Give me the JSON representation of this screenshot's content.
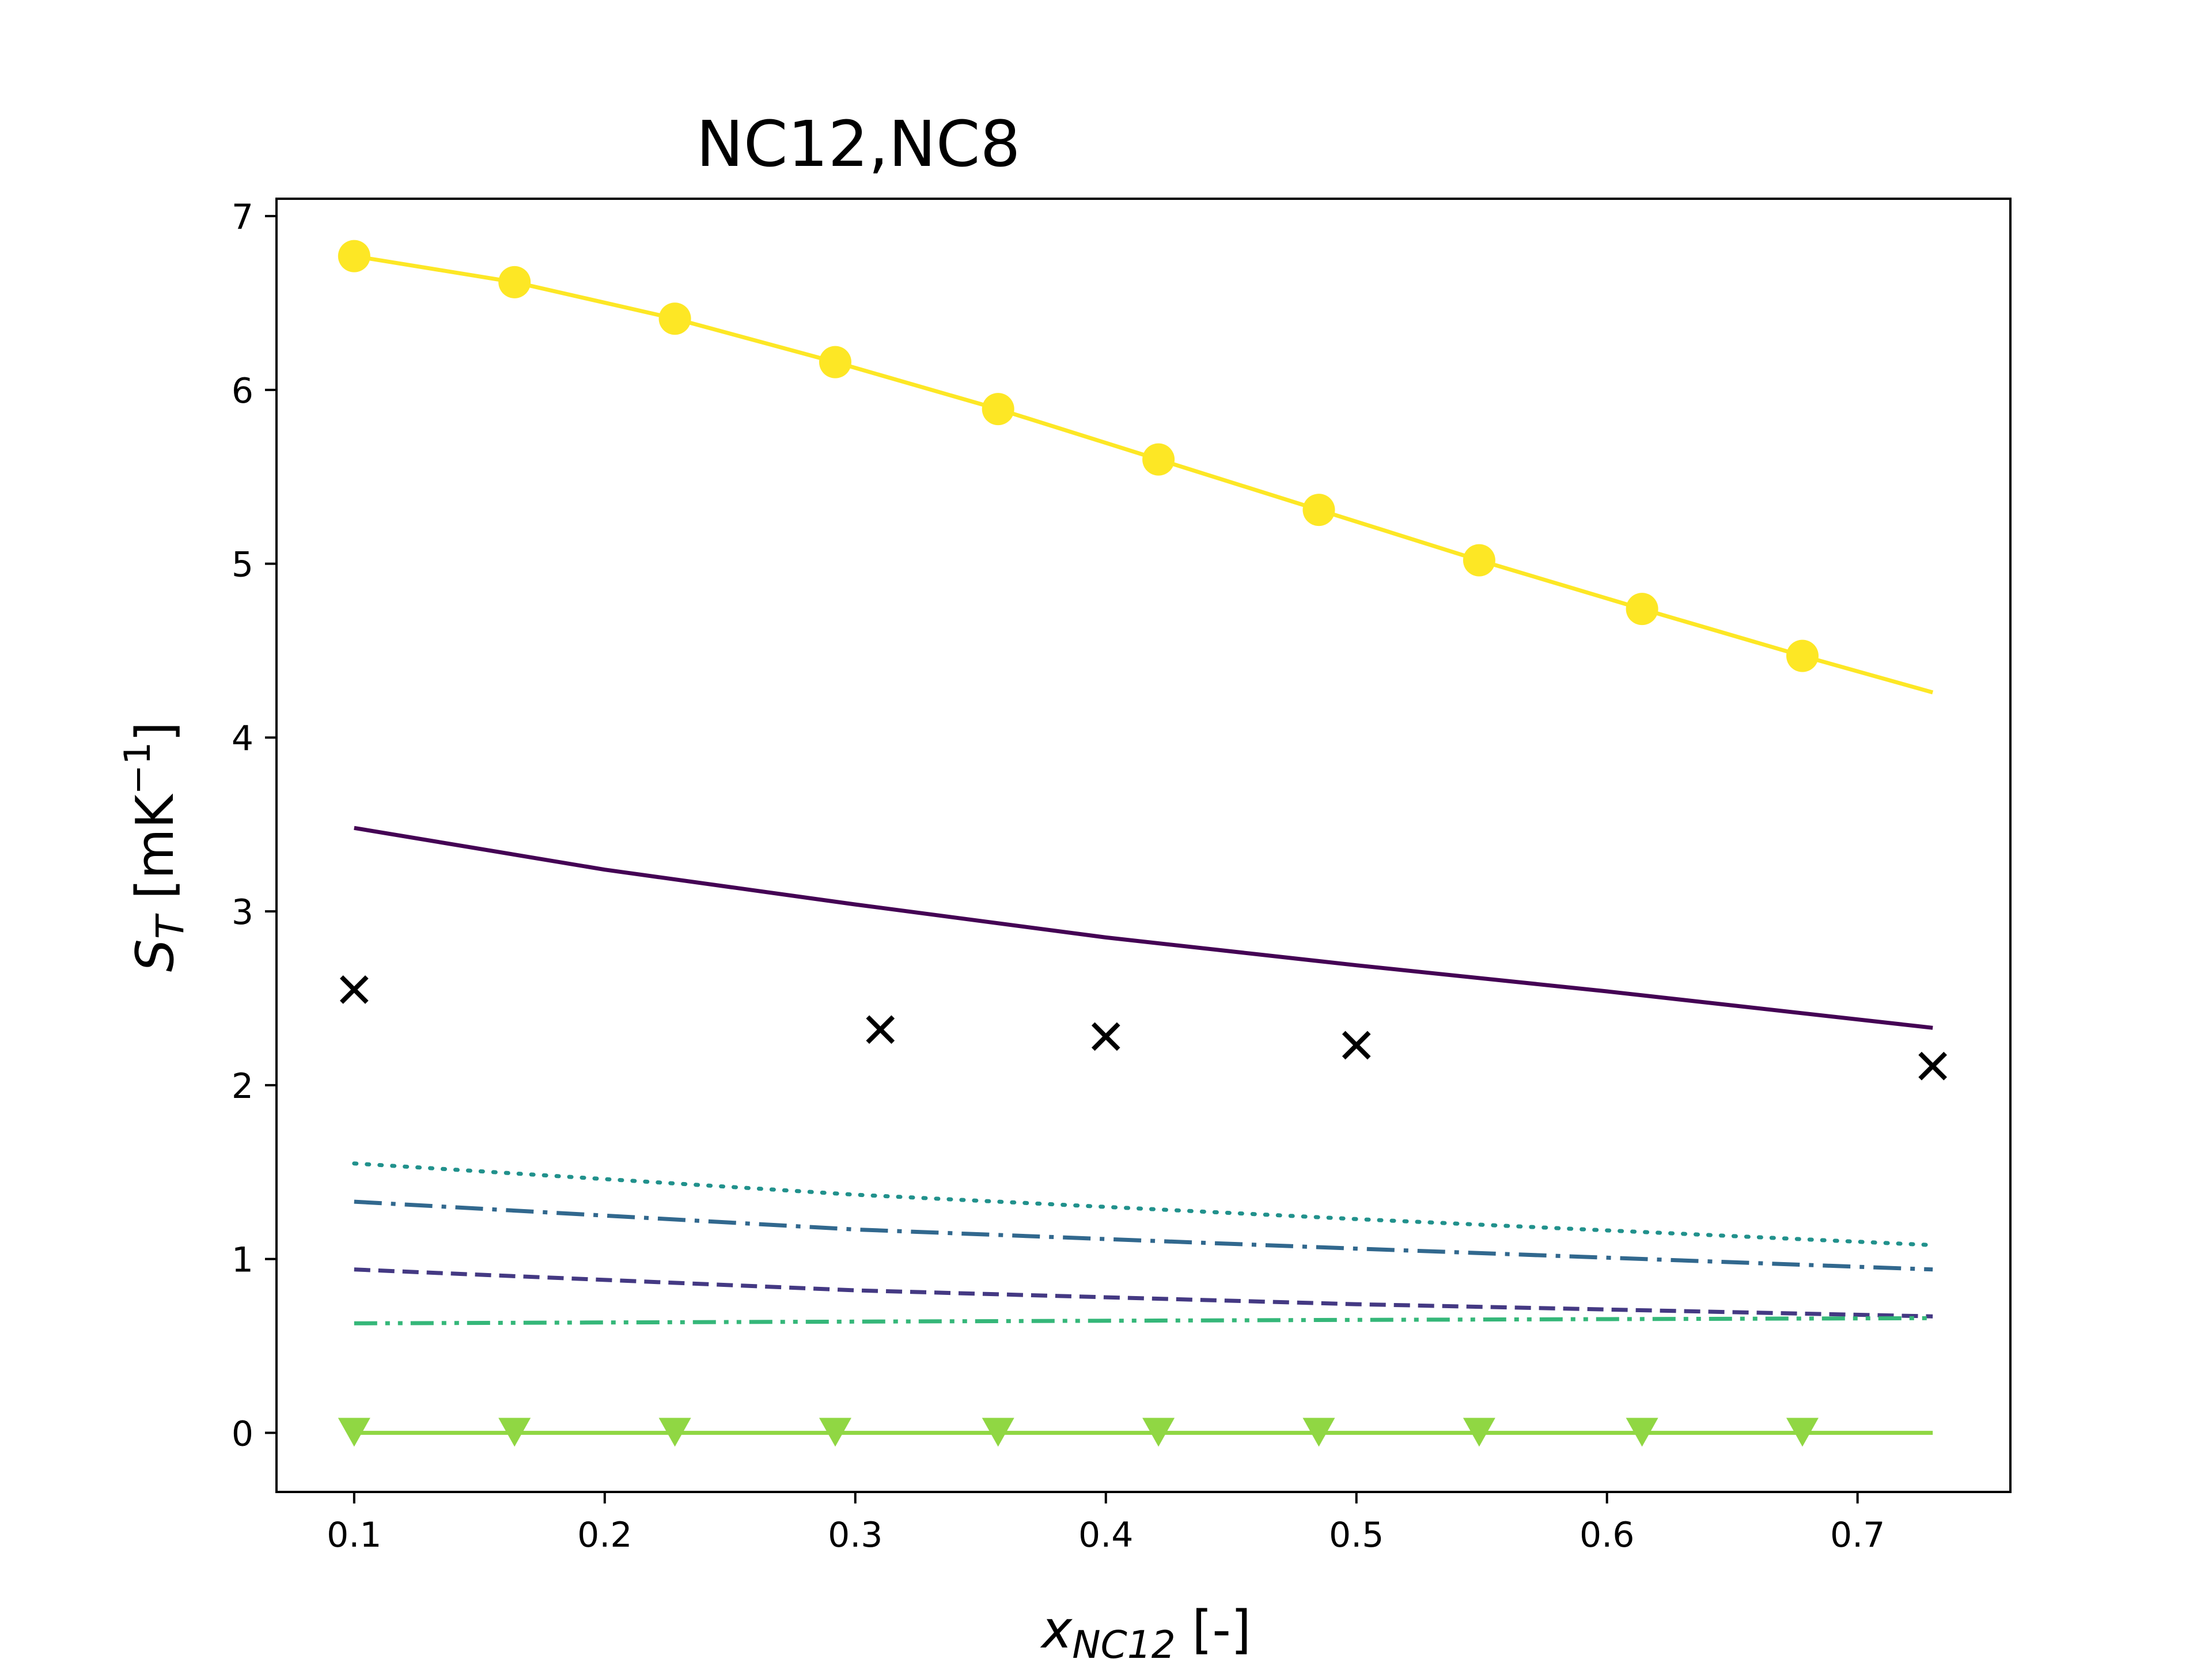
{
  "chart_data": {
    "type": "line",
    "title": "NC12,NC8",
    "xlabel": {
      "main": "x",
      "sub": "NC12",
      "suffix": " [-]"
    },
    "ylabel": {
      "main": "S",
      "sub": "T",
      "unit": " [mK",
      "exp": "−1",
      "close": "]"
    },
    "xlim": [
      0.069,
      0.761
    ],
    "ylim": [
      -0.34,
      7.1
    ],
    "xticks": [
      0.1,
      0.2,
      0.3,
      0.4,
      0.5,
      0.6,
      0.7
    ],
    "yticks": [
      0,
      1,
      2,
      3,
      4,
      5,
      6,
      7
    ],
    "grid": false,
    "legend": "none",
    "series": [
      {
        "style": "solid",
        "marker": "circle",
        "color": "#fde725",
        "x": [
          0.1,
          0.164,
          0.228,
          0.292,
          0.357,
          0.421,
          0.485,
          0.549,
          0.614,
          0.678
        ],
        "y": [
          6.77,
          6.62,
          6.41,
          6.16,
          5.89,
          5.6,
          5.31,
          5.02,
          4.74,
          4.47
        ],
        "line_x": [
          0.1,
          0.164,
          0.228,
          0.292,
          0.357,
          0.421,
          0.485,
          0.549,
          0.614,
          0.678,
          0.73
        ],
        "line_y": [
          6.77,
          6.62,
          6.41,
          6.16,
          5.89,
          5.6,
          5.31,
          5.02,
          4.74,
          4.47,
          4.26
        ]
      },
      {
        "style": "solid",
        "marker": "none",
        "color": "#440154",
        "x": [
          0.1,
          0.2,
          0.3,
          0.4,
          0.5,
          0.6,
          0.73
        ],
        "y": [
          3.48,
          3.24,
          3.04,
          2.85,
          2.69,
          2.54,
          2.33
        ]
      },
      {
        "style": "cross",
        "marker": "x",
        "color": "#000000",
        "x": [
          0.1,
          0.31,
          0.4,
          0.5,
          0.73
        ],
        "y": [
          2.55,
          2.32,
          2.28,
          2.23,
          2.11
        ]
      },
      {
        "style": "dotted",
        "marker": "none",
        "color": "#21918c",
        "x": [
          0.1,
          0.3,
          0.5,
          0.73
        ],
        "y": [
          1.55,
          1.37,
          1.23,
          1.08
        ]
      },
      {
        "style": "dashdot",
        "marker": "none",
        "color": "#31688e",
        "x": [
          0.1,
          0.3,
          0.5,
          0.73
        ],
        "y": [
          1.33,
          1.17,
          1.06,
          0.94
        ]
      },
      {
        "style": "dashed",
        "marker": "none",
        "color": "#443983",
        "x": [
          0.1,
          0.3,
          0.5,
          0.73
        ],
        "y": [
          0.94,
          0.82,
          0.74,
          0.67
        ]
      },
      {
        "style": "dashdotdot",
        "marker": "none",
        "color": "#35b779",
        "x": [
          0.1,
          0.3,
          0.5,
          0.73
        ],
        "y": [
          0.63,
          0.64,
          0.65,
          0.66
        ]
      },
      {
        "style": "solid",
        "marker": "triangle-down",
        "color": "#90d743",
        "x": [
          0.1,
          0.164,
          0.228,
          0.292,
          0.357,
          0.421,
          0.485,
          0.549,
          0.614,
          0.678
        ],
        "y": [
          0,
          0,
          0,
          0,
          0,
          0,
          0,
          0,
          0,
          0
        ],
        "line_x": [
          0.1,
          0.73
        ],
        "line_y": [
          0,
          0
        ]
      }
    ]
  }
}
